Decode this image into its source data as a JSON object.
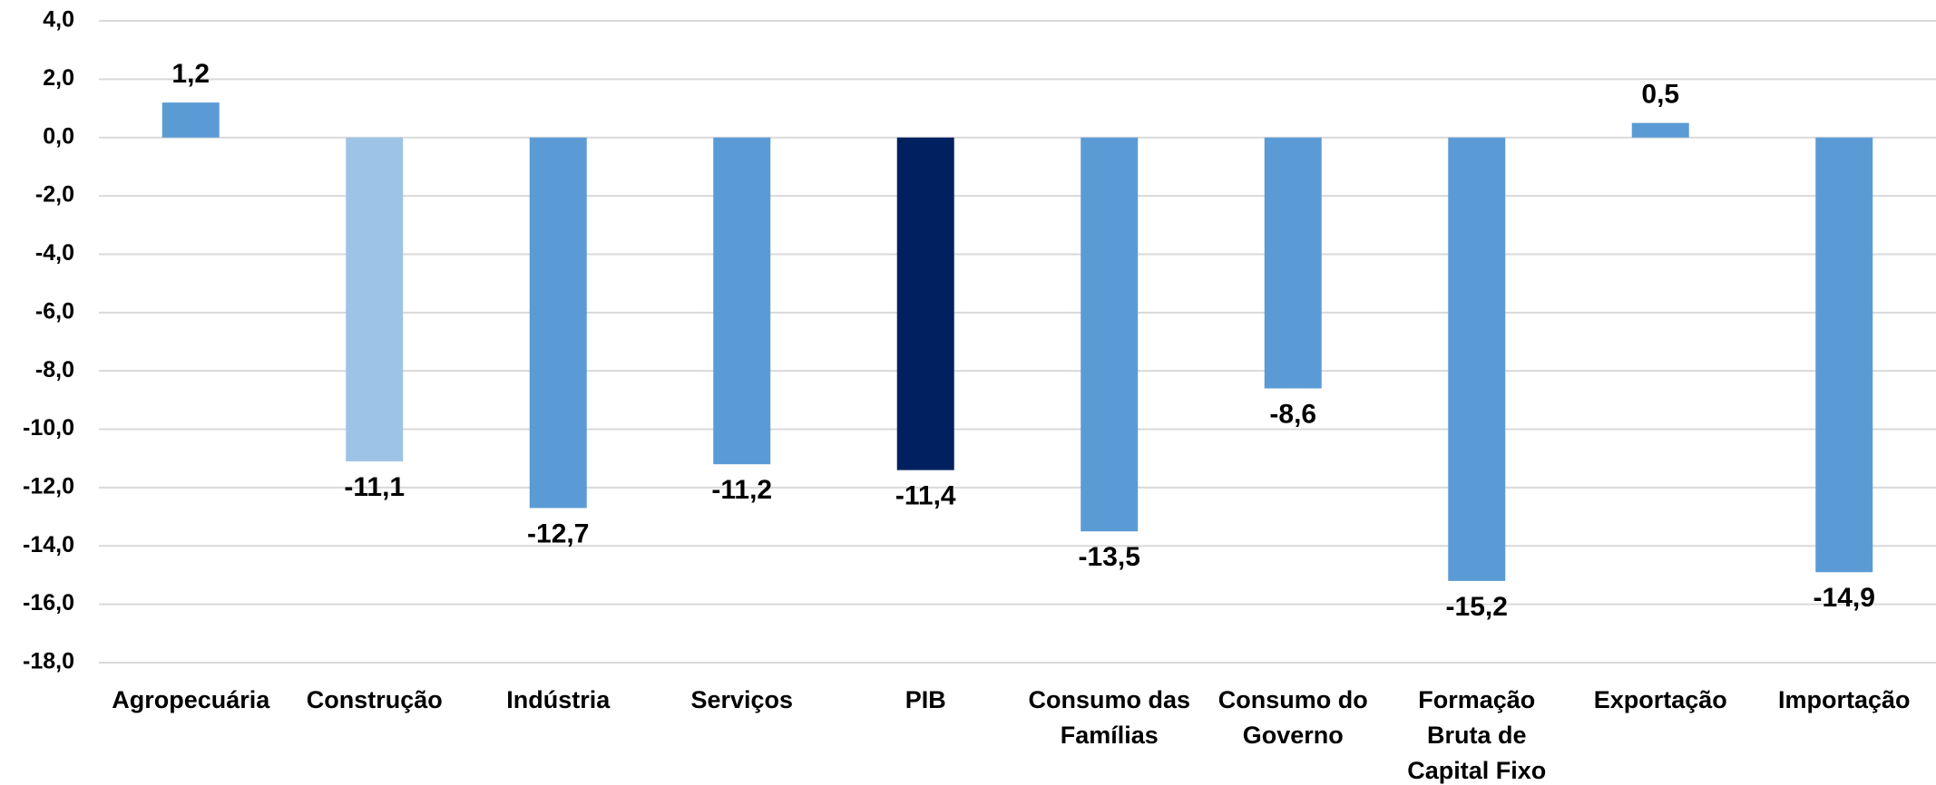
{
  "chart_data": {
    "type": "bar",
    "categories": [
      "Agropecuária",
      "Construção",
      "Indústria",
      "Serviços",
      "PIB",
      "Consumo das Famílias",
      "Consumo do Governo",
      "Formação Bruta de Capital Fixo",
      "Exportação",
      "Importação"
    ],
    "values": [
      1.2,
      -11.1,
      -12.7,
      -11.2,
      -11.4,
      -13.5,
      -8.6,
      -15.2,
      0.5,
      -14.9
    ],
    "value_labels": [
      "1,2",
      "-11,1",
      "-12,7",
      "-11,2",
      "-11,4",
      "-13,5",
      "-8,6",
      "-15,2",
      "0,5",
      "-14,9"
    ],
    "colors": [
      "#5b9bd5",
      "#9dc3e6",
      "#5b9bd5",
      "#5b9bd5",
      "#002060",
      "#5b9bd5",
      "#5b9bd5",
      "#5b9bd5",
      "#5b9bd5",
      "#5b9bd5"
    ],
    "ylim": [
      -18,
      4
    ],
    "yticks": [
      {
        "value": -18,
        "label": "-18,0"
      },
      {
        "value": -16,
        "label": "-16,0"
      },
      {
        "value": -14,
        "label": "-14,0"
      },
      {
        "value": -12,
        "label": "-12,0"
      },
      {
        "value": -10,
        "label": "-10,0"
      },
      {
        "value": -8,
        "label": "-8,0"
      },
      {
        "value": -6,
        "label": "-6,0"
      },
      {
        "value": -4,
        "label": "-4,0"
      },
      {
        "value": -2,
        "label": "-2,0"
      },
      {
        "value": 0,
        "label": "0,0"
      },
      {
        "value": 2,
        "label": "2,0"
      },
      {
        "value": 4,
        "label": "4,0"
      }
    ],
    "grid": true
  }
}
